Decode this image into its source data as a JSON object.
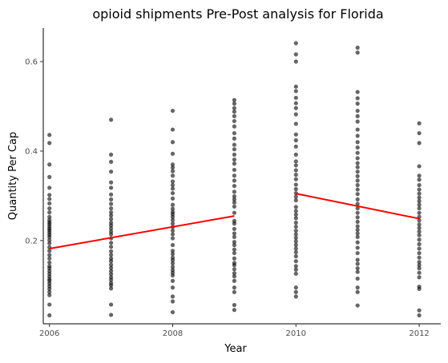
{
  "chart_data": {
    "type": "scatter",
    "title": "opioid shipments Pre-Post analysis for Florida",
    "xlabel": "Year",
    "ylabel": "Quantity Per Cap",
    "xlim": [
      2005.9,
      2012.35
    ],
    "ylim": [
      0.014,
      0.675
    ],
    "x_ticks": [
      2006,
      2008,
      2010,
      2012
    ],
    "x_tick_labels": [
      "2006",
      "2008",
      "2010",
      "2012"
    ],
    "y_ticks": [
      0.2,
      0.4,
      0.6
    ],
    "y_tick_labels": [
      "0.2",
      "0.4",
      "0.6"
    ],
    "grid": false,
    "colors": {
      "points": "#000000",
      "fit": "#ff0000"
    },
    "points": [
      {
        "x": 2006,
        "y": [
          0.033,
          0.057,
          0.078,
          0.085,
          0.092,
          0.098,
          0.104,
          0.11,
          0.114,
          0.12,
          0.126,
          0.132,
          0.138,
          0.143,
          0.151,
          0.16,
          0.168,
          0.177,
          0.185,
          0.194,
          0.201,
          0.208,
          0.213,
          0.218,
          0.223,
          0.227,
          0.232,
          0.237,
          0.241,
          0.246,
          0.253,
          0.263,
          0.272,
          0.283,
          0.293,
          0.302,
          0.318,
          0.342,
          0.37,
          0.418,
          0.436
        ]
      },
      {
        "x": 2007,
        "y": [
          0.034,
          0.057,
          0.093,
          0.1,
          0.105,
          0.112,
          0.118,
          0.125,
          0.132,
          0.139,
          0.146,
          0.154,
          0.16,
          0.168,
          0.176,
          0.186,
          0.195,
          0.205,
          0.214,
          0.22,
          0.227,
          0.234,
          0.24,
          0.248,
          0.256,
          0.263,
          0.272,
          0.282,
          0.292,
          0.303,
          0.318,
          0.33,
          0.354,
          0.376,
          0.392,
          0.47
        ]
      },
      {
        "x": 2008,
        "y": [
          0.04,
          0.064,
          0.075,
          0.095,
          0.11,
          0.122,
          0.128,
          0.134,
          0.141,
          0.149,
          0.156,
          0.162,
          0.17,
          0.177,
          0.19,
          0.205,
          0.214,
          0.222,
          0.23,
          0.238,
          0.246,
          0.253,
          0.259,
          0.264,
          0.271,
          0.28,
          0.294,
          0.306,
          0.316,
          0.324,
          0.332,
          0.345,
          0.355,
          0.363,
          0.37,
          0.394,
          0.42,
          0.448,
          0.49
        ]
      },
      {
        "x": 2009,
        "y": [
          0.045,
          0.056,
          0.085,
          0.095,
          0.11,
          0.12,
          0.127,
          0.136,
          0.145,
          0.15,
          0.16,
          0.172,
          0.18,
          0.19,
          0.197,
          0.208,
          0.216,
          0.226,
          0.238,
          0.244,
          0.262,
          0.276,
          0.285,
          0.292,
          0.299,
          0.309,
          0.322,
          0.334,
          0.345,
          0.358,
          0.372,
          0.381,
          0.392,
          0.404,
          0.414,
          0.428,
          0.44,
          0.455,
          0.467,
          0.478,
          0.488,
          0.496,
          0.506,
          0.514
        ]
      },
      {
        "x": 2010,
        "y": [
          0.075,
          0.085,
          0.095,
          0.126,
          0.135,
          0.143,
          0.154,
          0.165,
          0.174,
          0.182,
          0.19,
          0.198,
          0.206,
          0.214,
          0.222,
          0.231,
          0.24,
          0.25,
          0.258,
          0.266,
          0.275,
          0.29,
          0.298,
          0.306,
          0.315,
          0.325,
          0.337,
          0.347,
          0.357,
          0.368,
          0.377,
          0.392,
          0.41,
          0.424,
          0.437,
          0.461,
          0.482,
          0.496,
          0.507,
          0.519,
          0.534,
          0.544,
          0.6,
          0.616,
          0.641
        ]
      },
      {
        "x": 2011,
        "y": [
          0.055,
          0.085,
          0.095,
          0.115,
          0.13,
          0.138,
          0.148,
          0.157,
          0.172,
          0.184,
          0.196,
          0.208,
          0.216,
          0.224,
          0.232,
          0.242,
          0.252,
          0.262,
          0.272,
          0.282,
          0.292,
          0.304,
          0.314,
          0.324,
          0.334,
          0.344,
          0.354,
          0.364,
          0.373,
          0.384,
          0.396,
          0.408,
          0.42,
          0.434,
          0.448,
          0.466,
          0.478,
          0.49,
          0.506,
          0.518,
          0.532,
          0.62,
          0.631
        ]
      },
      {
        "x": 2012,
        "y": [
          0.033,
          0.044,
          0.092,
          0.097,
          0.118,
          0.128,
          0.138,
          0.145,
          0.152,
          0.162,
          0.172,
          0.182,
          0.192,
          0.202,
          0.212,
          0.22,
          0.228,
          0.236,
          0.245,
          0.253,
          0.262,
          0.272,
          0.28,
          0.288,
          0.296,
          0.305,
          0.314,
          0.324,
          0.336,
          0.345,
          0.366,
          0.418,
          0.44,
          0.462
        ]
      }
    ],
    "fit_lines": [
      {
        "x": [
          2006,
          2009
        ],
        "y": [
          0.182,
          0.255
        ]
      },
      {
        "x": [
          2010,
          2012
        ],
        "y": [
          0.305,
          0.249
        ]
      }
    ]
  }
}
